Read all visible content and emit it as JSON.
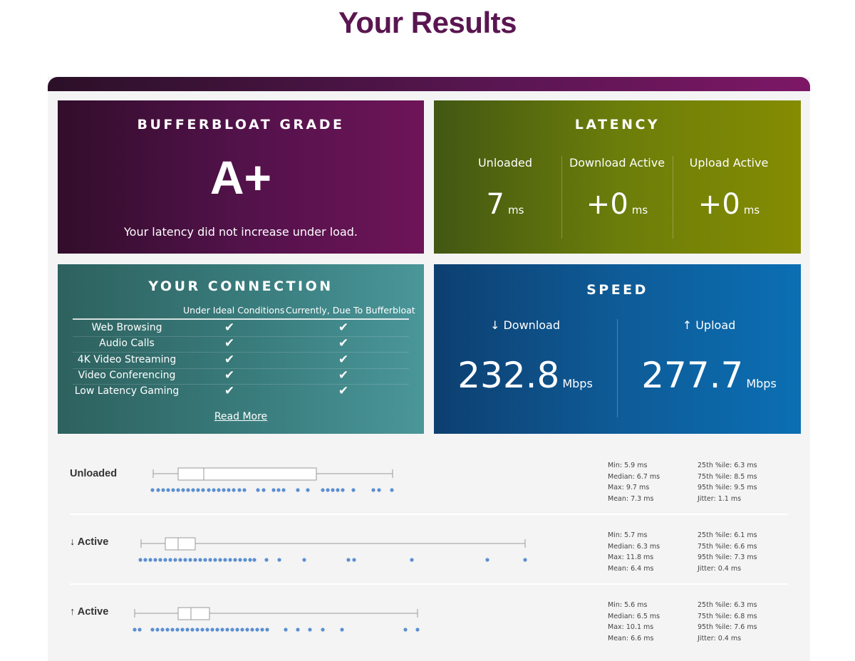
{
  "page_title": "Your Results",
  "grade": {
    "title": "BUFFERBLOAT GRADE",
    "value": "A+",
    "note": "Your latency did not increase under load."
  },
  "latency": {
    "title": "LATENCY",
    "columns": [
      {
        "label": "Unloaded",
        "value": "7",
        "unit": "ms"
      },
      {
        "label": "Download Active",
        "value": "+0",
        "unit": "ms"
      },
      {
        "label": "Upload Active",
        "value": "+0",
        "unit": "ms"
      }
    ]
  },
  "connection": {
    "title": "YOUR CONNECTION",
    "col_ideal": "Under Ideal Conditions",
    "col_current": "Currently, Due To Bufferbloat",
    "rows": [
      {
        "label": "Web Browsing",
        "ideal": "✔",
        "current": "✔"
      },
      {
        "label": "Audio Calls",
        "ideal": "✔",
        "current": "✔"
      },
      {
        "label": "4K Video Streaming",
        "ideal": "✔",
        "current": "✔"
      },
      {
        "label": "Video Conferencing",
        "ideal": "✔",
        "current": "✔"
      },
      {
        "label": "Low Latency Gaming",
        "ideal": "✔",
        "current": "✔"
      }
    ],
    "read_more": "Read More"
  },
  "speed": {
    "title": "SPEED",
    "download": {
      "label": "↓ Download",
      "value": "232.8",
      "unit": "Mbps"
    },
    "upload": {
      "label": "↑ Upload",
      "value": "277.7",
      "unit": "Mbps"
    }
  },
  "plots": [
    {
      "label": "Unloaded",
      "stats_left": [
        "Min: 5.9 ms",
        "Median: 6.7 ms",
        "Max: 9.7 ms",
        "Mean: 7.3 ms"
      ],
      "stats_right": [
        "25th %ile: 6.3 ms",
        "75th %ile: 8.5 ms",
        "95th %ile: 9.5 ms",
        "Jitter: 1.1 ms"
      ]
    },
    {
      "label": "↓ Active",
      "stats_left": [
        "Min: 5.7 ms",
        "Median: 6.3 ms",
        "Max: 11.8 ms",
        "Mean: 6.4 ms"
      ],
      "stats_right": [
        "25th %ile: 6.1 ms",
        "75th %ile: 6.6 ms",
        "95th %ile: 7.3 ms",
        "Jitter: 0.4 ms"
      ]
    },
    {
      "label": "↑ Active",
      "stats_left": [
        "Min: 5.6 ms",
        "Median: 6.5 ms",
        "Max: 10.1 ms",
        "Mean: 6.6 ms"
      ],
      "stats_right": [
        "25th %ile: 6.3 ms",
        "75th %ile: 6.8 ms",
        "95th %ile: 7.6 ms",
        "Jitter: 0.4 ms"
      ]
    }
  ],
  "colors": {
    "title": "#5a1650",
    "dot": "#5b8fd0",
    "box_stroke": "#9a9a9a"
  }
}
